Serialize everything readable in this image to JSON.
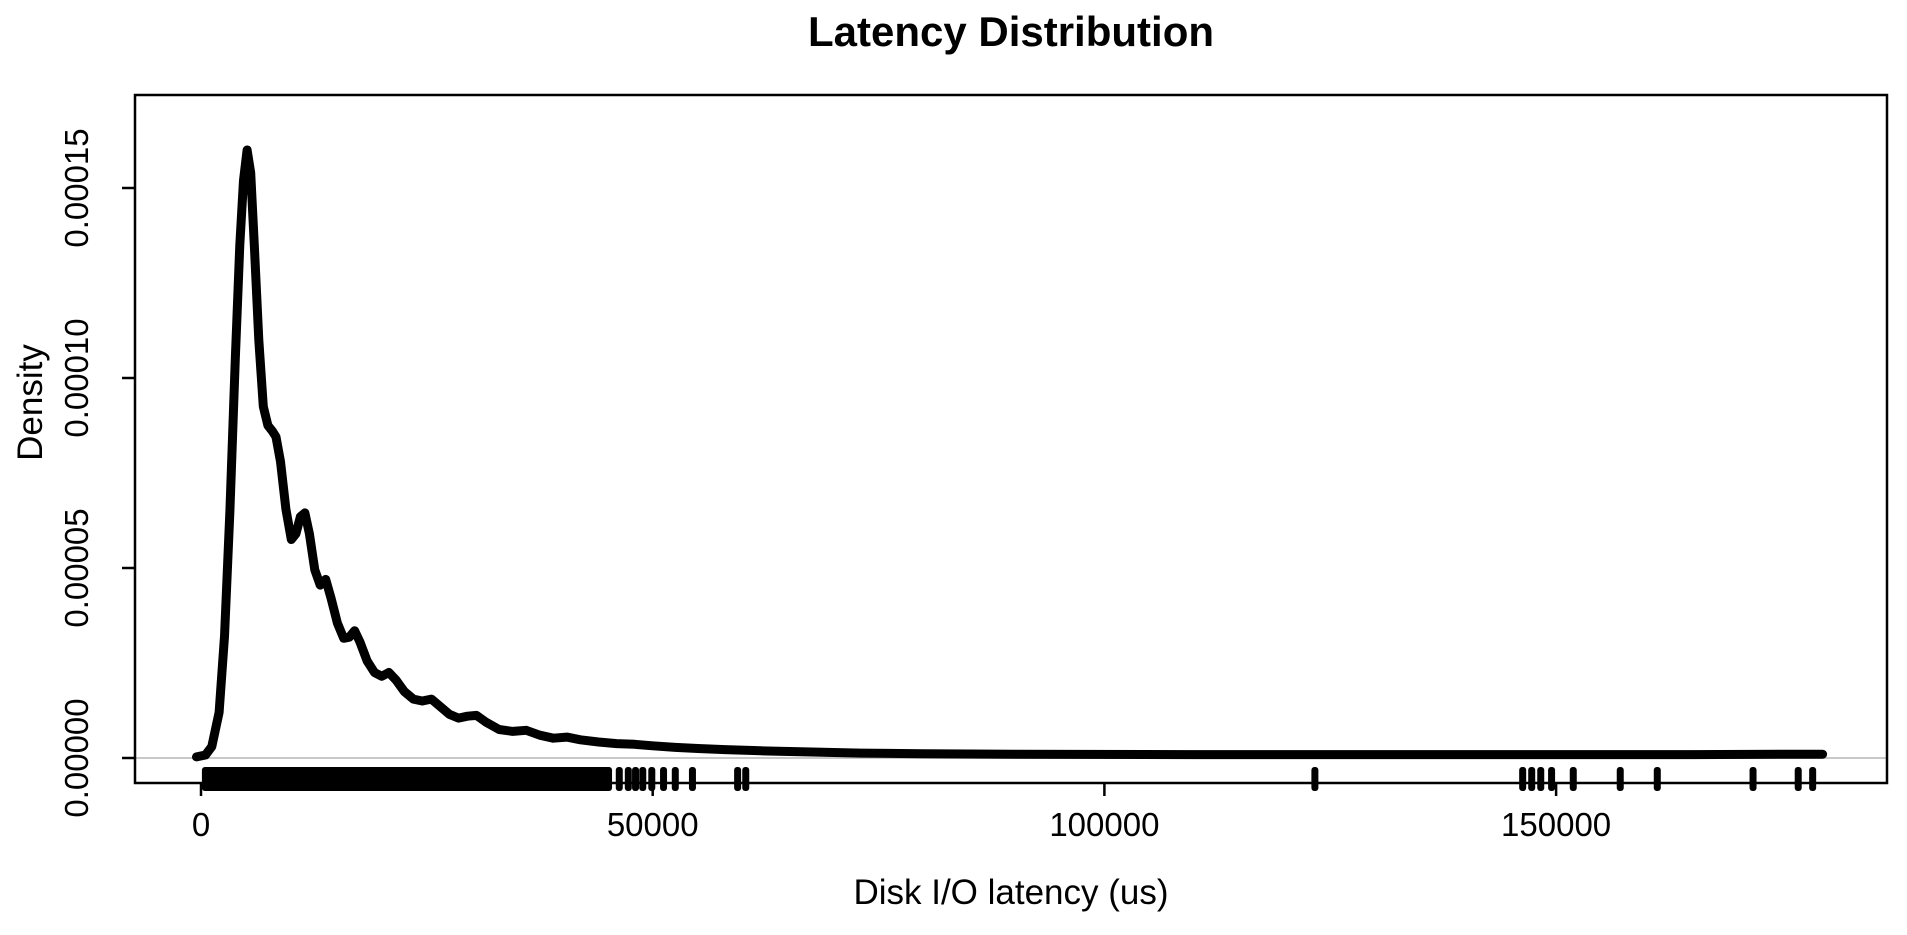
{
  "title": "Latency Distribution",
  "chart_data": {
    "type": "line",
    "subtype": "kernel-density-with-rug",
    "title": "Latency Distribution",
    "xlabel": "Disk I/O latency (us)",
    "ylabel": "Density",
    "x_ticks": [
      {
        "value": 0,
        "label": "0"
      },
      {
        "value": 50000,
        "label": "50000"
      },
      {
        "value": 100000,
        "label": "100000"
      },
      {
        "value": 150000,
        "label": "150000"
      }
    ],
    "y_ticks": [
      {
        "value": 0.0,
        "label": "0.00000"
      },
      {
        "value": 5e-05,
        "label": "0.00005"
      },
      {
        "value": 0.0001,
        "label": "0.00010"
      },
      {
        "value": 0.00015,
        "label": "0.00015"
      }
    ],
    "xlim": [
      -7300,
      186600
    ],
    "ylim": [
      -6.6e-06,
      0.0001745
    ],
    "grid": false,
    "legend": null,
    "line_color": "#000000",
    "zero_line_color": "#c8c8c8",
    "series": [
      {
        "name": "density",
        "points": [
          [
            -500,
            3e-07
          ],
          [
            500,
            8e-07
          ],
          [
            1200,
            3e-06
          ],
          [
            2000,
            1.2e-05
          ],
          [
            2600,
            3.2e-05
          ],
          [
            3200,
            6.5e-05
          ],
          [
            3800,
            0.000105
          ],
          [
            4300,
            0.000135
          ],
          [
            4700,
            0.000152
          ],
          [
            5100,
            0.00016
          ],
          [
            5500,
            0.000154
          ],
          [
            5900,
            0.000135
          ],
          [
            6400,
            0.00011
          ],
          [
            6900,
            9.25e-05
          ],
          [
            7400,
            8.75e-05
          ],
          [
            7900,
            8.6e-05
          ],
          [
            8300,
            8.45e-05
          ],
          [
            8800,
            7.8e-05
          ],
          [
            9400,
            6.55e-05
          ],
          [
            10000,
            5.75e-05
          ],
          [
            10500,
            5.9e-05
          ],
          [
            11000,
            6.35e-05
          ],
          [
            11500,
            6.45e-05
          ],
          [
            12000,
            5.9e-05
          ],
          [
            12600,
            4.95e-05
          ],
          [
            13200,
            4.55e-05
          ],
          [
            13800,
            4.7e-05
          ],
          [
            14400,
            4.2e-05
          ],
          [
            15100,
            3.55e-05
          ],
          [
            15800,
            3.15e-05
          ],
          [
            16400,
            3.18e-05
          ],
          [
            17000,
            3.35e-05
          ],
          [
            17600,
            3.05e-05
          ],
          [
            18400,
            2.55e-05
          ],
          [
            19200,
            2.25e-05
          ],
          [
            20000,
            2.15e-05
          ],
          [
            20800,
            2.25e-05
          ],
          [
            21600,
            2.05e-05
          ],
          [
            22500,
            1.75e-05
          ],
          [
            23500,
            1.55e-05
          ],
          [
            24500,
            1.5e-05
          ],
          [
            25500,
            1.55e-05
          ],
          [
            26500,
            1.35e-05
          ],
          [
            27500,
            1.15e-05
          ],
          [
            28500,
            1.05e-05
          ],
          [
            29500,
            1.1e-05
          ],
          [
            30500,
            1.12e-05
          ],
          [
            31500,
            9.5e-06
          ],
          [
            33000,
            7.5e-06
          ],
          [
            34500,
            7e-06
          ],
          [
            36000,
            7.3e-06
          ],
          [
            37500,
            6e-06
          ],
          [
            39000,
            5.2e-06
          ],
          [
            40500,
            5.5e-06
          ],
          [
            42000,
            4.8e-06
          ],
          [
            44000,
            4.2e-06
          ],
          [
            46000,
            3.8e-06
          ],
          [
            48000,
            3.6e-06
          ],
          [
            50000,
            3.2e-06
          ],
          [
            52500,
            2.8e-06
          ],
          [
            55000,
            2.5e-06
          ],
          [
            58000,
            2.2e-06
          ],
          [
            62000,
            1.9e-06
          ],
          [
            67000,
            1.6e-06
          ],
          [
            73000,
            1.3e-06
          ],
          [
            80000,
            1.1e-06
          ],
          [
            90000,
            1e-06
          ],
          [
            110000,
            9e-07
          ],
          [
            130000,
            9e-07
          ],
          [
            150000,
            9e-07
          ],
          [
            165000,
            9e-07
          ],
          [
            175000,
            1e-06
          ],
          [
            179500,
            1e-06
          ]
        ]
      }
    ],
    "rug": {
      "dense_band_us": [
        100,
        45500
      ],
      "sparse_marks_us": [
        46300,
        47300,
        48100,
        48900,
        49900,
        51200,
        52500,
        54400,
        59400,
        60300,
        123300,
        146300,
        147300,
        148300,
        149500,
        151900,
        157100,
        161200,
        171800,
        176800,
        178400
      ]
    }
  },
  "layout_note": "base-R style density plot, black curve on white, boxed plot area"
}
